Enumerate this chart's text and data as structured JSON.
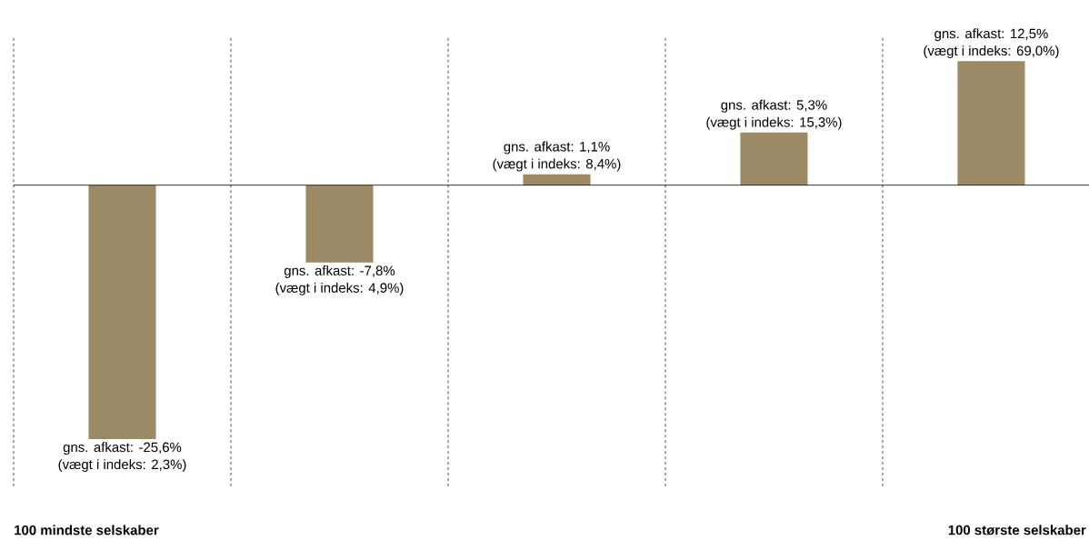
{
  "chart_data": {
    "type": "bar",
    "categories": [
      "100 mindste selskaber",
      null,
      null,
      null,
      "100 største selskaber"
    ],
    "values": [
      -25.6,
      -7.8,
      1.1,
      5.3,
      12.5
    ],
    "color": "#9c8966",
    "value_labels": [
      "gns. afkast: -25,6%",
      "gns. afkast: -7,8%",
      "gns. afkast: 1,1%",
      "gns. afkast: 5,3%",
      "gns. afkast: 12,5%"
    ],
    "annotations": [
      "(vægt i indeks: 2,3%)",
      "(vægt i indeks: 4,9%)",
      "(vægt i indeks: 8,4%)",
      "(vægt i indeks: 15,3%)",
      "(vægt i indeks: 69,0%)"
    ],
    "grid": "x"
  }
}
